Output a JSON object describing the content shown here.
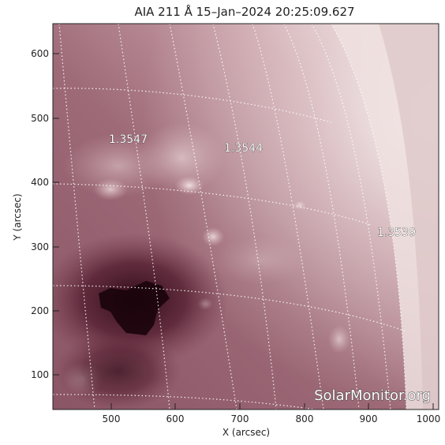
{
  "title": "AIA 211 Å 15–Jan–2024 20:25:09.627",
  "x_axis": {
    "label": "X (arcsec)",
    "ticks": [
      "500",
      "600",
      "700",
      "800",
      "900",
      "1000"
    ]
  },
  "y_axis": {
    "label": "Y (arcsec)",
    "ticks": [
      "100",
      "200",
      "300",
      "400",
      "500",
      "600"
    ]
  },
  "grid_labels": [
    "1.3547",
    "1.3544",
    "1.3539"
  ],
  "watermark": "SolarMonitor.org",
  "colors": {
    "disk_dark": "#3a0c1e",
    "disk_mid": "#8c5664",
    "disk_light": "#c8a2aa",
    "limb": "#f2e6e4",
    "grid": "#ffffff"
  }
}
